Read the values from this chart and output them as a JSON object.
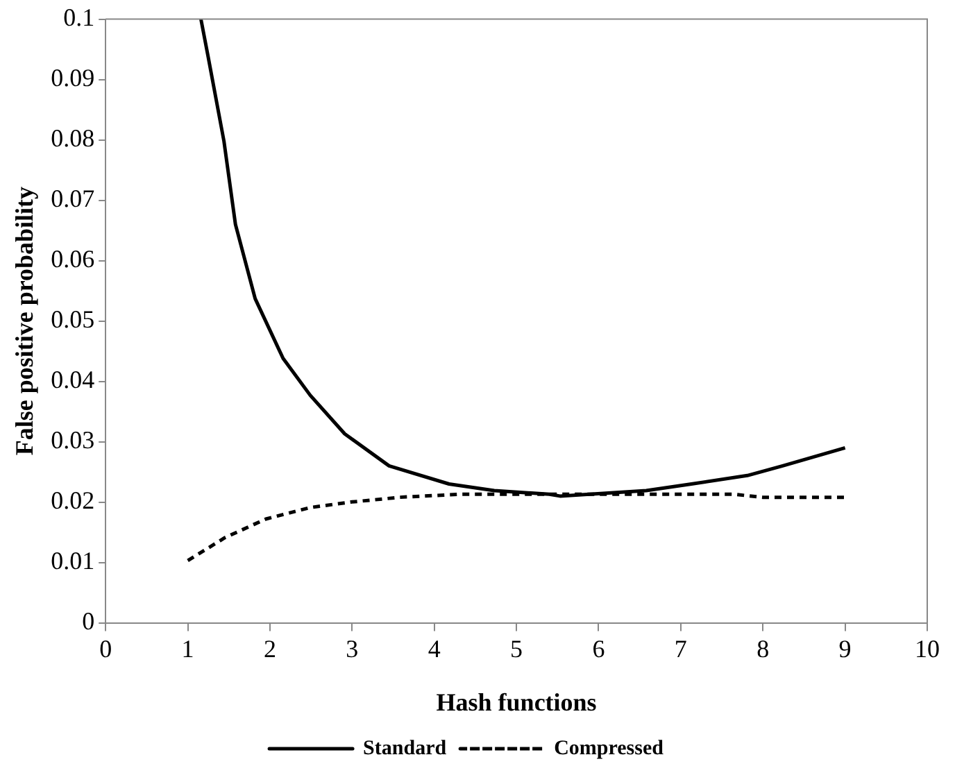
{
  "chart_data": {
    "type": "line",
    "xlabel": "Hash functions",
    "ylabel": "False positive probability",
    "xlim": [
      0,
      10
    ],
    "xticks": [
      0,
      1,
      2,
      3,
      4,
      5,
      6,
      7,
      8,
      9,
      10
    ],
    "ylim": [
      0,
      0.1
    ],
    "yticks": [
      0,
      0.01,
      0.02,
      0.03,
      0.04,
      0.05,
      0.06,
      0.07,
      0.08,
      0.09,
      0.1
    ],
    "grid": false,
    "legend": "bottom",
    "marker": "none",
    "series": [
      {
        "name": "Standard",
        "color": "#000000",
        "line_style": "solid",
        "x": [
          1.16,
          1.25,
          1.44,
          1.58,
          1.82,
          2.16,
          2.49,
          2.91,
          3.45,
          4.18,
          4.73,
          5.4,
          5.53,
          6.58,
          7.13,
          7.81,
          8.24,
          9
        ],
        "values": [
          0.1,
          0.0936,
          0.0798,
          0.066,
          0.0537,
          0.0438,
          0.0377,
          0.0313,
          0.026,
          0.023,
          0.0219,
          0.0213,
          0.021,
          0.0219,
          0.023,
          0.0244,
          0.026,
          0.029
        ]
      },
      {
        "name": "Compressed",
        "color": "#000000",
        "line_style": "dashed",
        "x": [
          1,
          1.45,
          1.95,
          2.49,
          2.98,
          3.58,
          4.31,
          5,
          6,
          7,
          7.64,
          8,
          9
        ],
        "values": [
          0.0103,
          0.0141,
          0.0172,
          0.0191,
          0.02,
          0.0208,
          0.0213,
          0.0213,
          0.0213,
          0.0213,
          0.0213,
          0.0208,
          0.0208
        ]
      }
    ]
  }
}
